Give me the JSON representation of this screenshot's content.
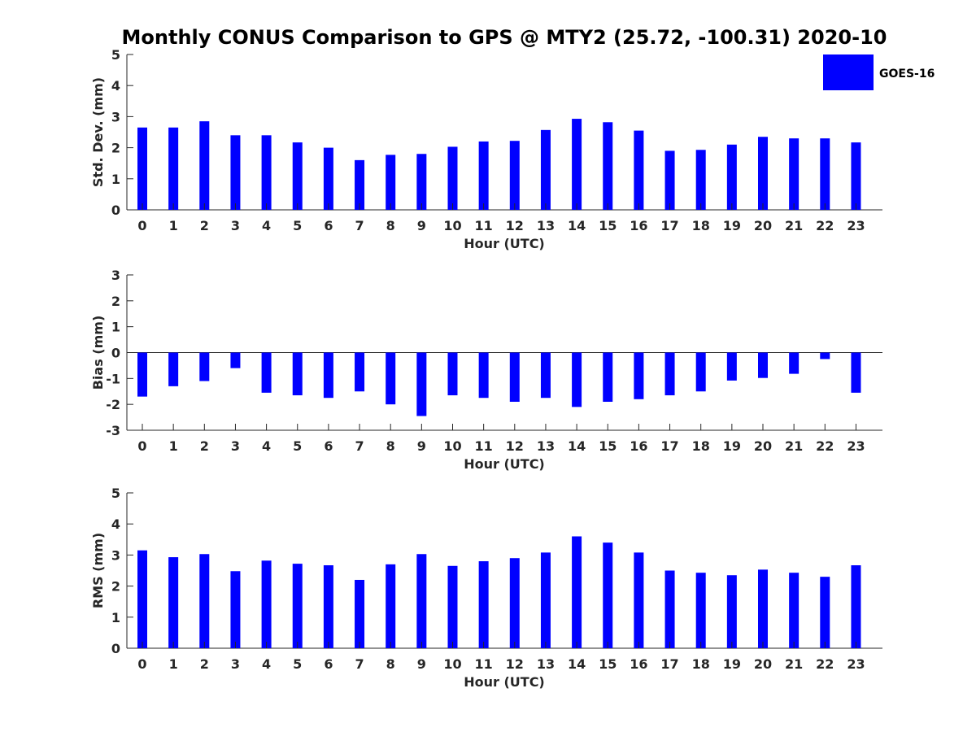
{
  "chart_data": {
    "title": "Monthly CONUS Comparison to GPS @ MTY2 (25.72, -100.31) 2020-10",
    "legend": {
      "label": "GOES-16",
      "placement": "top-right"
    },
    "bar_color": "#0000ff",
    "panels": [
      {
        "type": "bar",
        "ylabel": "Std. Dev. (mm)",
        "xlabel": "Hour (UTC)",
        "ylim": [
          0,
          5
        ],
        "yticks": [
          0,
          1,
          2,
          3,
          4,
          5
        ],
        "categories": [
          "0",
          "1",
          "2",
          "3",
          "4",
          "5",
          "6",
          "7",
          "8",
          "9",
          "10",
          "11",
          "12",
          "13",
          "14",
          "15",
          "16",
          "17",
          "18",
          "19",
          "20",
          "21",
          "22",
          "23"
        ],
        "values": [
          2.65,
          2.65,
          2.85,
          2.4,
          2.4,
          2.17,
          2.0,
          1.6,
          1.77,
          1.8,
          2.03,
          2.2,
          2.22,
          2.57,
          2.93,
          2.82,
          2.55,
          1.9,
          1.93,
          2.1,
          2.35,
          2.3,
          2.3,
          2.17
        ]
      },
      {
        "type": "bar",
        "ylabel": "Bias (mm)",
        "xlabel": "Hour (UTC)",
        "ylim": [
          -3,
          3
        ],
        "yticks": [
          -3,
          -2,
          -1,
          0,
          1,
          2,
          3
        ],
        "zero_line": true,
        "categories": [
          "0",
          "1",
          "2",
          "3",
          "4",
          "5",
          "6",
          "7",
          "8",
          "9",
          "10",
          "11",
          "12",
          "13",
          "14",
          "15",
          "16",
          "17",
          "18",
          "19",
          "20",
          "21",
          "22",
          "23"
        ],
        "values": [
          -1.7,
          -1.3,
          -1.1,
          -0.6,
          -1.55,
          -1.65,
          -1.75,
          -1.5,
          -2.0,
          -2.45,
          -1.65,
          -1.75,
          -1.9,
          -1.75,
          -2.1,
          -1.9,
          -1.8,
          -1.65,
          -1.5,
          -1.08,
          -0.98,
          -0.82,
          -0.25,
          -1.55
        ]
      },
      {
        "type": "bar",
        "ylabel": "RMS (mm)",
        "xlabel": "Hour (UTC)",
        "ylim": [
          0,
          5
        ],
        "yticks": [
          0,
          1,
          2,
          3,
          4,
          5
        ],
        "categories": [
          "0",
          "1",
          "2",
          "3",
          "4",
          "5",
          "6",
          "7",
          "8",
          "9",
          "10",
          "11",
          "12",
          "13",
          "14",
          "15",
          "16",
          "17",
          "18",
          "19",
          "20",
          "21",
          "22",
          "23"
        ],
        "values": [
          3.15,
          2.93,
          3.03,
          2.48,
          2.82,
          2.72,
          2.67,
          2.2,
          2.7,
          3.03,
          2.65,
          2.8,
          2.9,
          3.08,
          3.6,
          3.4,
          3.08,
          2.5,
          2.43,
          2.35,
          2.53,
          2.43,
          2.3,
          2.67
        ]
      }
    ]
  }
}
